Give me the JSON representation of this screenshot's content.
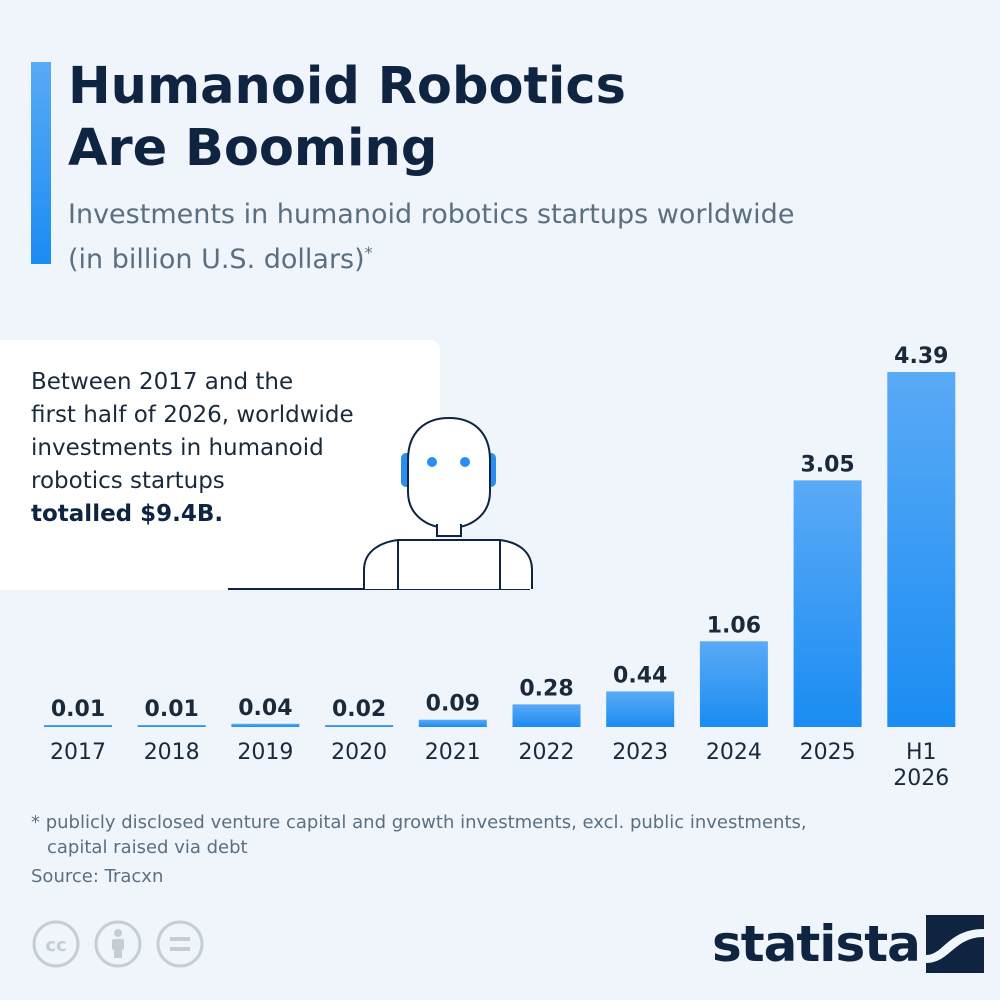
{
  "header": {
    "title_line1": "Humanoid Robotics",
    "title_line2": "Are Booming",
    "subtitle_line1": "Investments in humanoid robotics startups worldwide",
    "subtitle_line2": "(in billion U.S. dollars)",
    "subtitle_mark": "*"
  },
  "callout": {
    "line1": "Between 2017 and the",
    "line2": "first half of 2026, worldwide",
    "line3": "investments in humanoid",
    "line4": "robotics startups",
    "line5": "totalled $9.4B."
  },
  "footer": {
    "footnote_line1": "* publicly disclosed venture capital and growth investments, excl. public investments,",
    "footnote_line2": "capital raised via debt",
    "source": "Source: Tracxn",
    "logo_text": "statista"
  },
  "colors": {
    "bar_top": "#5aaaf6",
    "bar_bottom": "#1a8cf2",
    "title": "#0e2440",
    "muted": "#5b6f80"
  },
  "chart_data": {
    "type": "bar",
    "categories": [
      "2017",
      "2018",
      "2019",
      "2020",
      "2021",
      "2022",
      "2023",
      "2024",
      "2025",
      "H1 2026"
    ],
    "values": [
      0.01,
      0.01,
      0.04,
      0.02,
      0.09,
      0.28,
      0.44,
      1.06,
      3.05,
      4.39
    ],
    "value_labels": [
      "0.01",
      "0.01",
      "0.04",
      "0.02",
      "0.09",
      "0.28",
      "0.44",
      "1.06",
      "3.05",
      "4.39"
    ],
    "title": "Humanoid Robotics Are Booming",
    "xlabel": "",
    "ylabel": "",
    "ylim": [
      0,
      4.39
    ],
    "grid": false,
    "legend": "none"
  }
}
